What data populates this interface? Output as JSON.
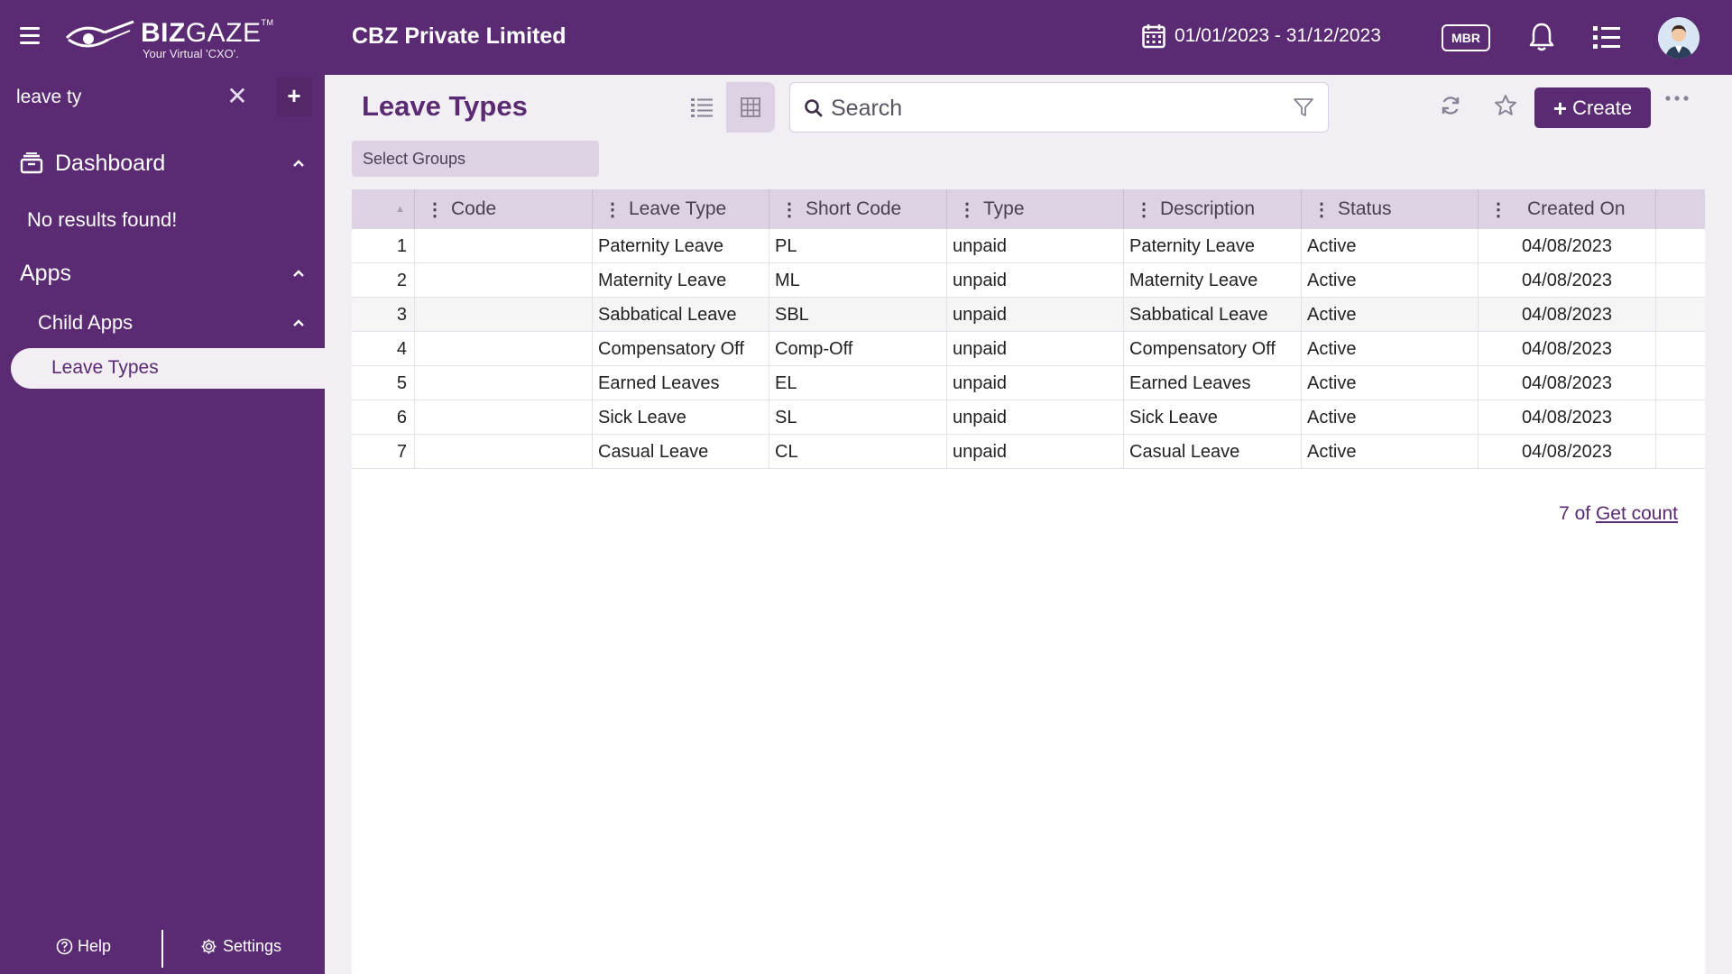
{
  "app": {
    "brand_main": "BIZ",
    "brand_light": "GAZE",
    "brand_tm": "TM",
    "tagline": "Your Virtual 'CXO'.",
    "company": "CBZ Private Limited",
    "date_range": "01/01/2023 - 31/12/2023",
    "mbr_label": "MBR",
    "icons": [
      "hamburger-icon",
      "calendar-icon",
      "bell-icon",
      "task-list-icon"
    ]
  },
  "sidebar": {
    "search_value": "leave ty",
    "clear_glyph": "✕",
    "add_glyph": "+",
    "dashboard_label": "Dashboard",
    "no_results": "No results found!",
    "apps_label": "Apps",
    "child_apps_label": "Child Apps",
    "active_item": "Leave Types",
    "help_label": "Help",
    "settings_label": "Settings"
  },
  "main": {
    "title": "Leave Types",
    "search_placeholder": "Search",
    "create_label": "Create",
    "select_groups": "Select Groups",
    "count_prefix": "7 of",
    "count_link": "Get count"
  },
  "table": {
    "columns": [
      "Code",
      "Leave Type",
      "Short Code",
      "Type",
      "Description",
      "Status",
      "Created On"
    ],
    "rows": [
      {
        "idx": "1",
        "code": "",
        "leave_type": "Paternity Leave",
        "short_code": "PL",
        "type": "unpaid",
        "description": "Paternity Leave",
        "status": "Active",
        "created_on": "04/08/2023"
      },
      {
        "idx": "2",
        "code": "",
        "leave_type": "Maternity Leave",
        "short_code": "ML",
        "type": "unpaid",
        "description": "Maternity Leave",
        "status": "Active",
        "created_on": "04/08/2023"
      },
      {
        "idx": "3",
        "code": "",
        "leave_type": "Sabbatical Leave",
        "short_code": "SBL",
        "type": "unpaid",
        "description": "Sabbatical Leave",
        "status": "Active",
        "created_on": "04/08/2023"
      },
      {
        "idx": "4",
        "code": "",
        "leave_type": "Compensatory Off",
        "short_code": "Comp-Off",
        "type": "unpaid",
        "description": "Compensatory Off",
        "status": "Active",
        "created_on": "04/08/2023"
      },
      {
        "idx": "5",
        "code": "",
        "leave_type": "Earned Leaves",
        "short_code": "EL",
        "type": "unpaid",
        "description": "Earned Leaves",
        "status": "Active",
        "created_on": "04/08/2023"
      },
      {
        "idx": "6",
        "code": "",
        "leave_type": "Sick Leave",
        "short_code": "SL",
        "type": "unpaid",
        "description": "Sick Leave",
        "status": "Active",
        "created_on": "04/08/2023"
      },
      {
        "idx": "7",
        "code": "",
        "leave_type": "Casual Leave",
        "short_code": "CL",
        "type": "unpaid",
        "description": "Casual Leave",
        "status": "Active",
        "created_on": "04/08/2023"
      }
    ]
  },
  "colors": {
    "brand_purple": "#5a2a72",
    "header_lavender": "#dcd2e4",
    "background": "#f2eff4"
  }
}
